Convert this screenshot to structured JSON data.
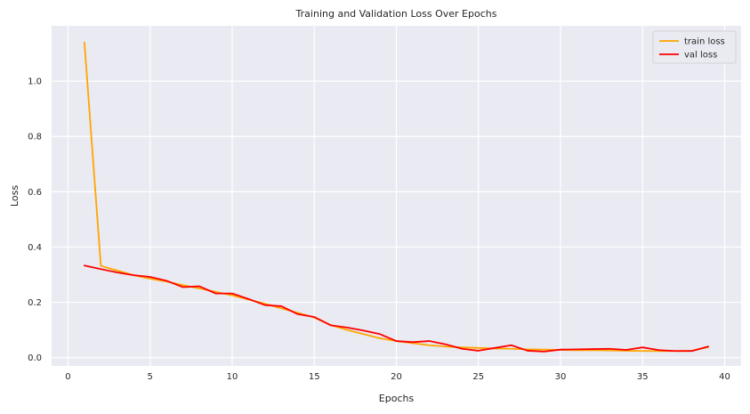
{
  "chart_data": {
    "type": "line",
    "title": "Training and Validation Loss Over Epochs",
    "xlabel": "Epochs",
    "ylabel": "Loss",
    "xlim": [
      -1,
      41
    ],
    "ylim": [
      -0.03,
      1.2
    ],
    "x_ticks": [
      0,
      5,
      10,
      15,
      20,
      25,
      30,
      35,
      40
    ],
    "y_ticks": [
      0.0,
      0.2,
      0.4,
      0.6,
      0.8,
      1.0
    ],
    "y_tick_labels": [
      "0.0",
      "0.2",
      "0.4",
      "0.6",
      "0.8",
      "1.0"
    ],
    "grid": true,
    "background": "#eaeaf2",
    "legend_position": "top-right",
    "x": [
      1,
      2,
      3,
      4,
      5,
      6,
      7,
      8,
      9,
      10,
      11,
      12,
      13,
      14,
      15,
      16,
      17,
      18,
      19,
      20,
      21,
      22,
      23,
      24,
      25,
      26,
      27,
      28,
      29,
      30,
      31,
      32,
      33,
      34,
      35,
      36,
      37,
      38,
      39
    ],
    "series": [
      {
        "name": "train loss",
        "color": "#ffa500",
        "values": [
          1.14,
          0.332,
          0.315,
          0.298,
          0.285,
          0.275,
          0.262,
          0.25,
          0.238,
          0.225,
          0.21,
          0.195,
          0.178,
          0.162,
          0.145,
          0.118,
          0.1,
          0.085,
          0.07,
          0.06,
          0.052,
          0.045,
          0.04,
          0.037,
          0.035,
          0.033,
          0.032,
          0.03,
          0.029,
          0.028,
          0.027,
          0.027,
          0.026,
          0.025,
          0.024,
          0.024,
          0.024,
          0.025,
          0.038
        ]
      },
      {
        "name": "val loss",
        "color": "#ff0000",
        "values": [
          0.333,
          0.32,
          0.308,
          0.298,
          0.292,
          0.278,
          0.255,
          0.258,
          0.232,
          0.232,
          0.212,
          0.19,
          0.186,
          0.157,
          0.147,
          0.117,
          0.109,
          0.098,
          0.085,
          0.06,
          0.056,
          0.06,
          0.048,
          0.032,
          0.025,
          0.035,
          0.045,
          0.025,
          0.022,
          0.029,
          0.03,
          0.031,
          0.032,
          0.028,
          0.037,
          0.027,
          0.024,
          0.024,
          0.04
        ]
      }
    ]
  }
}
